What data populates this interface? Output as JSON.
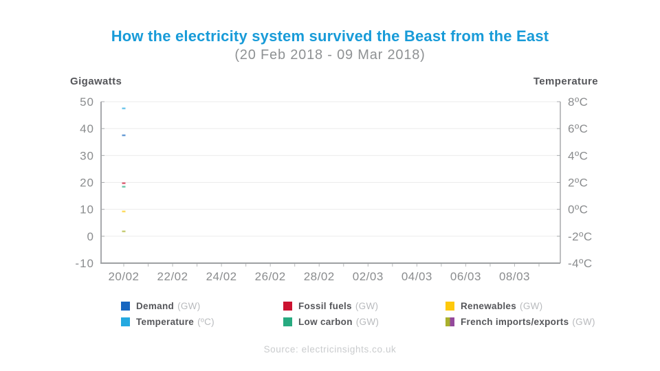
{
  "header": {
    "title": "How the electricity system survived the Beast from the East",
    "subtitle": "(20 Feb 2018 - 09 Mar 2018)"
  },
  "chart_data": {
    "type": "line",
    "title": "How the electricity system survived the Beast from the East",
    "subtitle": "(20 Feb 2018 - 09 Mar 2018)",
    "state_note": "animation start frame - only the first data point of each series is plotted",
    "grid": true,
    "legend_position": "bottom",
    "left_axis": {
      "label": "Gigawatts",
      "ticks": [
        "50",
        "40",
        "30",
        "20",
        "10",
        "0",
        "-10"
      ],
      "min": -10,
      "max": 50
    },
    "right_axis": {
      "label": "Temperature",
      "ticks": [
        "8ºC",
        "6ºC",
        "4ºC",
        "2ºC",
        "0ºC",
        "-2ºC",
        "-4ºC"
      ],
      "min": -4,
      "max": 8
    },
    "x_axis": {
      "tick_labels": [
        "20/02",
        "22/02",
        "24/02",
        "26/02",
        "28/02",
        "02/03",
        "04/03",
        "06/03",
        "08/03"
      ],
      "days_per_label": 2,
      "total_days": 18
    },
    "series": [
      {
        "name": "Demand",
        "unit": "GW",
        "axis": "left",
        "color": "#1766C0",
        "points": [
          {
            "x": "20/02",
            "y": 37.5
          }
        ]
      },
      {
        "name": "Temperature",
        "unit": "ºC",
        "axis": "right",
        "color": "#24A9E0",
        "points": [
          {
            "x": "20/02",
            "y": 7.5
          }
        ]
      },
      {
        "name": "Fossil fuels",
        "unit": "GW",
        "axis": "left",
        "color": "#CC1230",
        "points": [
          {
            "x": "20/02",
            "y": 19.7
          }
        ]
      },
      {
        "name": "Low carbon",
        "unit": "GW",
        "axis": "left",
        "color": "#27AA80",
        "points": [
          {
            "x": "20/02",
            "y": 18.4
          }
        ]
      },
      {
        "name": "Renewables",
        "unit": "GW",
        "axis": "left",
        "color": "#FEC90C",
        "points": [
          {
            "x": "20/02",
            "y": 9.2
          }
        ]
      },
      {
        "name": "French imports/exports",
        "unit": "GW",
        "axis": "left",
        "color": "#A9B02C",
        "color2": "#94499C",
        "points": [
          {
            "x": "20/02",
            "y": 1.8
          }
        ]
      }
    ]
  },
  "legend": {
    "items": [
      {
        "label": "Demand",
        "unit": "(GW)",
        "colors": [
          "#1766C0"
        ]
      },
      {
        "label": "Temperature",
        "unit": "(ºC)",
        "colors": [
          "#24A9E0"
        ]
      },
      {
        "label": "Fossil fuels",
        "unit": "(GW)",
        "colors": [
          "#CC1230"
        ]
      },
      {
        "label": "Low carbon",
        "unit": "(GW)",
        "colors": [
          "#27AA80"
        ]
      },
      {
        "label": "Renewables",
        "unit": "(GW)",
        "colors": [
          "#FEC90C"
        ]
      },
      {
        "label": "French imports/exports",
        "unit": "(GW)",
        "colors": [
          "#A9B02C",
          "#94499C"
        ]
      }
    ]
  },
  "source": "Source: electricinsights.co.uk",
  "colors": {
    "title": "#189BD8",
    "subtitle": "#8E9193",
    "axis_title": "#55565A",
    "tick_label": "#8A8C8E",
    "gridline": "#EBEBEB",
    "axis_line": "#A7A9AC",
    "bottom_axis_line": "#9DA0A2",
    "minor_tick": "#B6B8BA",
    "legend_label": "#55565A",
    "legend_unit": "#B8BABD",
    "source_text": "#C9CBCD"
  }
}
